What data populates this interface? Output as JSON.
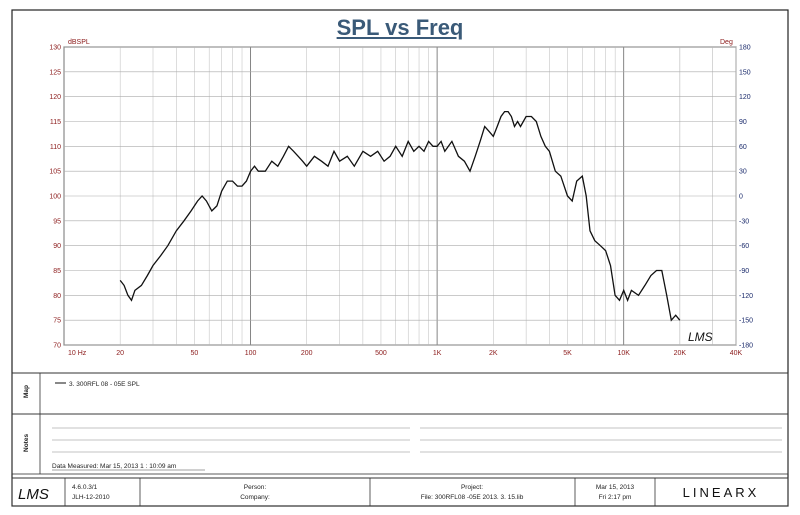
{
  "chart_data": {
    "type": "line",
    "title": "SPL vs Freq",
    "ylabel_left": "dBSPL",
    "ylabel_right": "Deg",
    "x_scale": "log",
    "xlim": [
      10,
      40000
    ],
    "ylim": [
      70,
      130
    ],
    "ylim_right": [
      -180,
      180
    ],
    "x_ticks": [
      {
        "v": 10,
        "label": "10 Hz"
      },
      {
        "v": 20,
        "label": "20"
      },
      {
        "v": 50,
        "label": "50"
      },
      {
        "v": 100,
        "label": "100"
      },
      {
        "v": 200,
        "label": "200"
      },
      {
        "v": 500,
        "label": "500"
      },
      {
        "v": 1000,
        "label": "1K"
      },
      {
        "v": 2000,
        "label": "2K"
      },
      {
        "v": 5000,
        "label": "5K"
      },
      {
        "v": 10000,
        "label": "10K"
      },
      {
        "v": 20000,
        "label": "20K"
      },
      {
        "v": 40000,
        "label": "40K"
      }
    ],
    "y_ticks": [
      "70",
      "75",
      "80",
      "85",
      "90",
      "95",
      "100",
      "105",
      "110",
      "115",
      "120",
      "125",
      "130"
    ],
    "y_ticks_right": [
      "-180",
      "-150",
      "-120",
      "-90",
      "-60",
      "-30",
      "0",
      "30",
      "60",
      "90",
      "120",
      "150",
      "180"
    ],
    "grid": true,
    "series": [
      {
        "name": "3. 300RFL 08 - 05E  SPL",
        "x": [
          20,
          21,
          22,
          23,
          24,
          26,
          28,
          30,
          33,
          36,
          40,
          44,
          48,
          52,
          55,
          58,
          62,
          66,
          70,
          75,
          80,
          85,
          90,
          95,
          100,
          105,
          110,
          120,
          130,
          140,
          150,
          160,
          170,
          180,
          190,
          200,
          220,
          240,
          260,
          280,
          300,
          330,
          360,
          400,
          440,
          480,
          520,
          560,
          600,
          650,
          700,
          750,
          800,
          850,
          900,
          950,
          1000,
          1050,
          1100,
          1200,
          1300,
          1400,
          1500,
          1600,
          1700,
          1800,
          1900,
          2000,
          2100,
          2200,
          2300,
          2400,
          2500,
          2600,
          2700,
          2800,
          3000,
          3200,
          3400,
          3600,
          3800,
          4000,
          4300,
          4600,
          5000,
          5300,
          5600,
          6000,
          6300,
          6600,
          7000,
          7500,
          8000,
          8500,
          9000,
          9500,
          10000,
          10500,
          11000,
          12000,
          13000,
          14000,
          15000,
          16000,
          17000,
          18000,
          19000,
          20000
        ],
        "y": [
          83,
          82,
          80,
          79,
          81,
          82,
          84,
          86,
          88,
          90,
          93,
          95,
          97,
          99,
          100,
          99,
          97,
          98,
          101,
          103,
          103,
          102,
          102,
          103,
          105,
          106,
          105,
          105,
          107,
          106,
          108,
          110,
          109,
          108,
          107,
          106,
          108,
          107,
          106,
          109,
          107,
          108,
          106,
          109,
          108,
          109,
          107,
          108,
          110,
          108,
          111,
          109,
          110,
          109,
          111,
          110,
          110,
          111,
          109,
          111,
          108,
          107,
          105,
          108,
          111,
          114,
          113,
          112,
          114,
          116,
          117,
          117,
          116,
          114,
          115,
          114,
          116,
          116,
          115,
          112,
          110,
          109,
          105,
          104,
          100,
          99,
          103,
          104,
          100,
          93,
          91,
          90,
          89,
          86,
          80,
          79,
          81,
          79,
          81,
          80,
          82,
          84,
          85,
          85,
          80,
          75,
          76,
          75
        ]
      }
    ],
    "legend": "bottom"
  },
  "panels": {
    "map_label": "Map",
    "notes_label": "Notes",
    "legend_entry": "3. 300RFL 08 - 05E  SPL",
    "data_measured": "Data Measured: Mar 15, 2013  1 : 10:09 am"
  },
  "footer": {
    "version": "4.6.0.3/1",
    "date_code": "JLH-12-2010",
    "person_label": "Person:",
    "company_label": "Company:",
    "project_label": "Project:",
    "file_label": "File: 300RFL08 -05E 2013. 3. 15.lib",
    "date": "Mar 15, 2013",
    "time": "Fri   2:17 pm",
    "brand": "LINEARX"
  },
  "signature_text": "LMS",
  "logo_text": "LMS"
}
